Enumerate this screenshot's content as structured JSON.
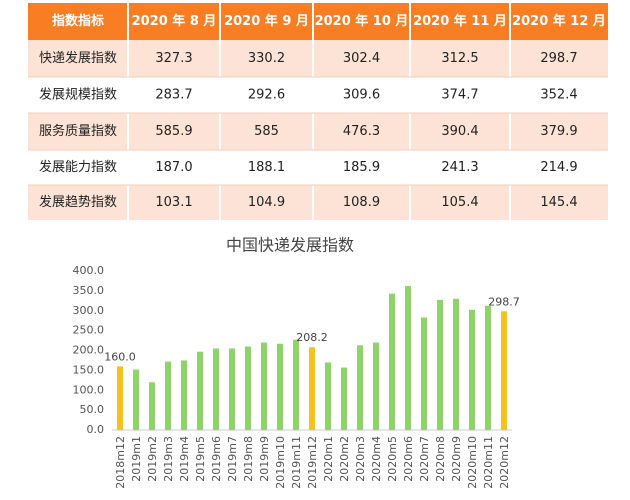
{
  "table": {
    "header": [
      "指数指标",
      "2020 年 8 月",
      "2020 年 9 月",
      "2020 年 10 月",
      "2020 年 11 月",
      "2020 年 12 月"
    ],
    "rows": [
      [
        "快递发展指数",
        "327.3",
        "330.2",
        "302.4",
        "312.5",
        "298.7"
      ],
      [
        "发展规模指数",
        "283.7",
        "292.6",
        "309.6",
        "374.7",
        "352.4"
      ],
      [
        "服务质量指数",
        "585.9",
        "585",
        "476.3",
        "390.4",
        "379.9"
      ],
      [
        "发展能力指数",
        "187.0",
        "188.1",
        "185.9",
        "241.3",
        "214.9"
      ],
      [
        "发展趋势指数",
        "103.1",
        "104.9",
        "108.9",
        "105.4",
        "145.4"
      ]
    ]
  },
  "chart_data": {
    "type": "bar",
    "title": "中国快递发展指数",
    "categories": [
      "2018m12",
      "2019m1",
      "2019m2",
      "2019m3",
      "2019m4",
      "2019m5",
      "2019m6",
      "2019m7",
      "2019m8",
      "2019m9",
      "2019m10",
      "2019m11",
      "2019m12",
      "2020m1",
      "2020m2",
      "2020m3",
      "2020m4",
      "2020m5",
      "2020m6",
      "2020m7",
      "2020m8",
      "2020m9",
      "2020m10",
      "2020m11",
      "2020m12"
    ],
    "values": [
      160.0,
      152,
      120,
      172,
      175,
      197,
      205,
      205,
      210,
      220,
      217,
      227,
      208.2,
      170,
      157,
      213,
      220,
      343,
      362,
      283,
      327.3,
      330.2,
      302.4,
      312.5,
      298.7
    ],
    "value_labels": [
      "160.0",
      null,
      null,
      null,
      null,
      null,
      null,
      null,
      null,
      null,
      null,
      null,
      "208.2",
      null,
      null,
      null,
      null,
      null,
      null,
      null,
      null,
      null,
      null,
      null,
      "298.7"
    ],
    "colors": [
      "#f5c31c",
      "#8fd468",
      "#8fd468",
      "#8fd468",
      "#8fd468",
      "#8fd468",
      "#8fd468",
      "#8fd468",
      "#8fd468",
      "#8fd468",
      "#8fd468",
      "#8fd468",
      "#f5c31c",
      "#8fd468",
      "#8fd468",
      "#8fd468",
      "#8fd468",
      "#8fd468",
      "#8fd468",
      "#8fd468",
      "#8fd468",
      "#8fd468",
      "#8fd468",
      "#8fd468",
      "#f5c31c"
    ],
    "ylim": [
      0,
      400
    ],
    "yticks": [
      {
        "value": 0,
        "label": "0.0"
      },
      {
        "value": 50,
        "label": "50.0"
      },
      {
        "value": 100,
        "label": "100.0"
      },
      {
        "value": 150,
        "label": "150.0"
      },
      {
        "value": 200,
        "label": "200.0"
      },
      {
        "value": 250,
        "label": "250.0"
      },
      {
        "value": 300,
        "label": "300.0"
      },
      {
        "value": 350,
        "label": "350.0"
      },
      {
        "value": 400,
        "label": "400.0"
      }
    ],
    "grid": false
  }
}
